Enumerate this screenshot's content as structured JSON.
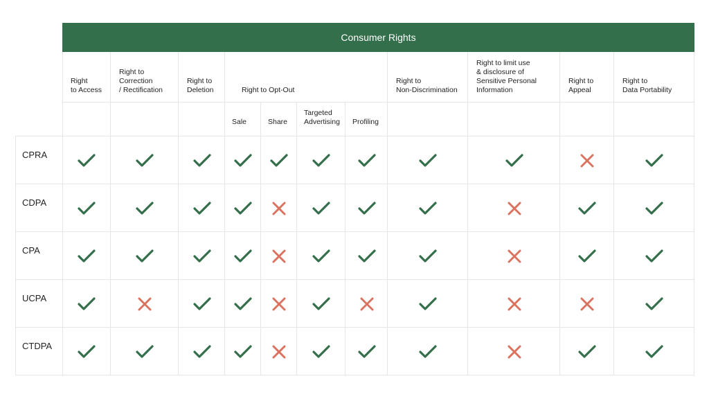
{
  "title": "Consumer Rights",
  "columns": [
    {
      "label": "Right\nto Access"
    },
    {
      "label": "Right to\nCorrection\n/ Rectification"
    },
    {
      "label": "Right to\nDeletion"
    },
    {
      "label": "Right to Opt-Out"
    },
    {
      "label": "Right to\nNon-Discrimination"
    },
    {
      "label": "Right to limit use\n& disclosure of\nSensitive Personal\nInformation"
    },
    {
      "label": "Right to\nAppeal"
    },
    {
      "label": "Right to\nData Portability"
    }
  ],
  "opt_out_subcolumns": [
    "Sale",
    "Share",
    "Targeted\nAdvertising",
    "Profiling"
  ],
  "rows": [
    {
      "law": "CPRA",
      "values": [
        true,
        true,
        true,
        true,
        true,
        true,
        true,
        true,
        true,
        false,
        true
      ]
    },
    {
      "law": "CDPA",
      "values": [
        true,
        true,
        true,
        true,
        false,
        true,
        true,
        true,
        false,
        true,
        true
      ]
    },
    {
      "law": "CPA",
      "values": [
        true,
        true,
        true,
        true,
        false,
        true,
        true,
        true,
        false,
        true,
        true
      ]
    },
    {
      "law": "UCPA",
      "values": [
        true,
        false,
        true,
        true,
        false,
        true,
        false,
        true,
        false,
        false,
        true
      ]
    },
    {
      "law": "CTDPA",
      "values": [
        true,
        true,
        true,
        true,
        false,
        true,
        true,
        true,
        false,
        true,
        true
      ]
    }
  ],
  "icons": {
    "yes": "checkmark-icon",
    "no": "cross-icon"
  },
  "colors": {
    "header": "#346f4b",
    "yes": "#346f4b",
    "no": "#d9735f",
    "grid": "#e6e6e6"
  }
}
